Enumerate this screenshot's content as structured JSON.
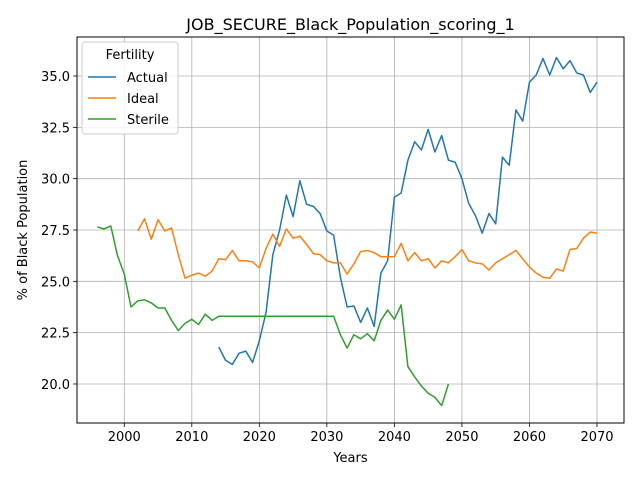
{
  "chart_data": {
    "type": "line",
    "title": "JOB_SECURE_Black_Population_scoring_1",
    "xlabel": "Years",
    "ylabel": "% of Black Population",
    "xlim": [
      1993,
      2074
    ],
    "ylim": [
      18.1,
      36.9
    ],
    "x_ticks": [
      2000,
      2010,
      2020,
      2030,
      2040,
      2050,
      2060,
      2070
    ],
    "y_ticks": [
      20.0,
      22.5,
      25.0,
      27.5,
      30.0,
      32.5,
      35.0
    ],
    "x_tick_labels": [
      "2000",
      "2010",
      "2020",
      "2030",
      "2040",
      "2050",
      "2060",
      "2070"
    ],
    "y_tick_labels": [
      "20.0",
      "22.5",
      "25.0",
      "27.5",
      "30.0",
      "32.5",
      "35.0"
    ],
    "grid": true,
    "legend": {
      "title": "Fertility",
      "position": "top-left"
    },
    "series": [
      {
        "name": "Actual",
        "color": "#1f77b4",
        "points": [
          [
            2014,
            21.8
          ],
          [
            2015,
            21.15
          ],
          [
            2016,
            20.95
          ],
          [
            2017,
            21.5
          ],
          [
            2018,
            21.6
          ],
          [
            2019,
            21.05
          ],
          [
            2020,
            22.1
          ],
          [
            2021,
            23.5
          ],
          [
            2022,
            26.3
          ],
          [
            2023,
            27.5
          ],
          [
            2024,
            29.2
          ],
          [
            2025,
            28.15
          ],
          [
            2026,
            29.9
          ],
          [
            2027,
            28.75
          ],
          [
            2028,
            28.65
          ],
          [
            2029,
            28.3
          ],
          [
            2030,
            27.45
          ],
          [
            2031,
            27.25
          ],
          [
            2032,
            25.2
          ],
          [
            2033,
            23.75
          ],
          [
            2034,
            23.8
          ],
          [
            2035,
            23.0
          ],
          [
            2036,
            23.7
          ],
          [
            2037,
            22.8
          ],
          [
            2038,
            25.4
          ],
          [
            2039,
            26.0
          ],
          [
            2040,
            29.1
          ],
          [
            2041,
            29.3
          ],
          [
            2042,
            30.9
          ],
          [
            2043,
            31.8
          ],
          [
            2044,
            31.4
          ],
          [
            2045,
            32.4
          ],
          [
            2046,
            31.3
          ],
          [
            2047,
            32.1
          ],
          [
            2048,
            30.9
          ],
          [
            2049,
            30.8
          ],
          [
            2050,
            30.0
          ],
          [
            2051,
            28.8
          ],
          [
            2052,
            28.2
          ],
          [
            2053,
            27.35
          ],
          [
            2054,
            28.3
          ],
          [
            2055,
            27.8
          ],
          [
            2056,
            31.05
          ],
          [
            2057,
            30.65
          ],
          [
            2058,
            33.35
          ],
          [
            2059,
            32.8
          ],
          [
            2060,
            34.7
          ],
          [
            2061,
            35.05
          ],
          [
            2062,
            35.85
          ],
          [
            2063,
            35.05
          ],
          [
            2064,
            35.9
          ],
          [
            2065,
            35.35
          ],
          [
            2066,
            35.75
          ],
          [
            2067,
            35.15
          ],
          [
            2068,
            35.05
          ],
          [
            2069,
            34.2
          ],
          [
            2070,
            34.7
          ]
        ]
      },
      {
        "name": "Ideal",
        "color": "#ff7f0e",
        "points": [
          [
            2002,
            27.45
          ],
          [
            2003,
            28.05
          ],
          [
            2004,
            27.05
          ],
          [
            2005,
            28.0
          ],
          [
            2006,
            27.45
          ],
          [
            2007,
            27.6
          ],
          [
            2008,
            26.3
          ],
          [
            2009,
            25.15
          ],
          [
            2010,
            25.3
          ],
          [
            2011,
            25.4
          ],
          [
            2012,
            25.25
          ],
          [
            2013,
            25.5
          ],
          [
            2014,
            26.1
          ],
          [
            2015,
            26.05
          ],
          [
            2016,
            26.5
          ],
          [
            2017,
            26.0
          ],
          [
            2018,
            26.0
          ],
          [
            2019,
            25.95
          ],
          [
            2020,
            25.65
          ],
          [
            2021,
            26.6
          ],
          [
            2022,
            27.3
          ],
          [
            2023,
            26.7
          ],
          [
            2024,
            27.55
          ],
          [
            2025,
            27.1
          ],
          [
            2026,
            27.2
          ],
          [
            2027,
            26.8
          ],
          [
            2028,
            26.35
          ],
          [
            2029,
            26.3
          ],
          [
            2030,
            26.0
          ],
          [
            2031,
            25.9
          ],
          [
            2032,
            25.9
          ],
          [
            2033,
            25.35
          ],
          [
            2034,
            25.85
          ],
          [
            2035,
            26.45
          ],
          [
            2036,
            26.5
          ],
          [
            2037,
            26.4
          ],
          [
            2038,
            26.2
          ],
          [
            2039,
            26.2
          ],
          [
            2040,
            26.2
          ],
          [
            2041,
            26.85
          ],
          [
            2042,
            26.0
          ],
          [
            2043,
            26.4
          ],
          [
            2044,
            26.0
          ],
          [
            2045,
            26.1
          ],
          [
            2046,
            25.65
          ],
          [
            2047,
            26.0
          ],
          [
            2048,
            25.9
          ],
          [
            2049,
            26.2
          ],
          [
            2050,
            26.55
          ],
          [
            2051,
            26.0
          ],
          [
            2052,
            25.9
          ],
          [
            2053,
            25.85
          ],
          [
            2054,
            25.55
          ],
          [
            2055,
            25.9
          ],
          [
            2056,
            26.1
          ],
          [
            2057,
            26.3
          ],
          [
            2058,
            26.5
          ],
          [
            2059,
            26.1
          ],
          [
            2060,
            25.7
          ],
          [
            2061,
            25.4
          ],
          [
            2062,
            25.2
          ],
          [
            2063,
            25.15
          ],
          [
            2064,
            25.6
          ],
          [
            2065,
            25.5
          ],
          [
            2066,
            26.55
          ],
          [
            2067,
            26.6
          ],
          [
            2068,
            27.1
          ],
          [
            2069,
            27.4
          ],
          [
            2070,
            27.35
          ]
        ]
      },
      {
        "name": "Sterile",
        "color": "#2ca02c",
        "points": [
          [
            1996,
            27.65
          ],
          [
            1997,
            27.55
          ],
          [
            1998,
            27.7
          ],
          [
            1999,
            26.25
          ],
          [
            2000,
            25.35
          ],
          [
            2001,
            23.75
          ],
          [
            2002,
            24.05
          ],
          [
            2003,
            24.1
          ],
          [
            2004,
            23.95
          ],
          [
            2005,
            23.7
          ],
          [
            2006,
            23.7
          ],
          [
            2007,
            23.1
          ],
          [
            2008,
            22.6
          ],
          [
            2009,
            22.95
          ],
          [
            2010,
            23.15
          ],
          [
            2011,
            22.9
          ],
          [
            2012,
            23.4
          ],
          [
            2013,
            23.1
          ],
          [
            2014,
            23.3
          ],
          [
            2015,
            23.3
          ],
          [
            2016,
            23.3
          ],
          [
            2017,
            23.3
          ],
          [
            2018,
            23.3
          ],
          [
            2019,
            23.3
          ],
          [
            2020,
            23.3
          ],
          [
            2021,
            23.3
          ],
          [
            2022,
            23.3
          ],
          [
            2023,
            23.3
          ],
          [
            2024,
            23.3
          ],
          [
            2025,
            23.3
          ],
          [
            2026,
            23.3
          ],
          [
            2027,
            23.3
          ],
          [
            2028,
            23.3
          ],
          [
            2029,
            23.3
          ],
          [
            2030,
            23.3
          ],
          [
            2031,
            23.3
          ],
          [
            2032,
            22.4
          ],
          [
            2033,
            21.75
          ],
          [
            2034,
            22.4
          ],
          [
            2035,
            22.2
          ],
          [
            2036,
            22.45
          ],
          [
            2037,
            22.1
          ],
          [
            2038,
            23.1
          ],
          [
            2039,
            23.6
          ],
          [
            2040,
            23.15
          ],
          [
            2041,
            23.85
          ],
          [
            2042,
            20.85
          ],
          [
            2043,
            20.35
          ],
          [
            2044,
            19.9
          ],
          [
            2045,
            19.55
          ],
          [
            2046,
            19.35
          ],
          [
            2047,
            18.95
          ],
          [
            2048,
            20.0
          ]
        ]
      }
    ]
  }
}
